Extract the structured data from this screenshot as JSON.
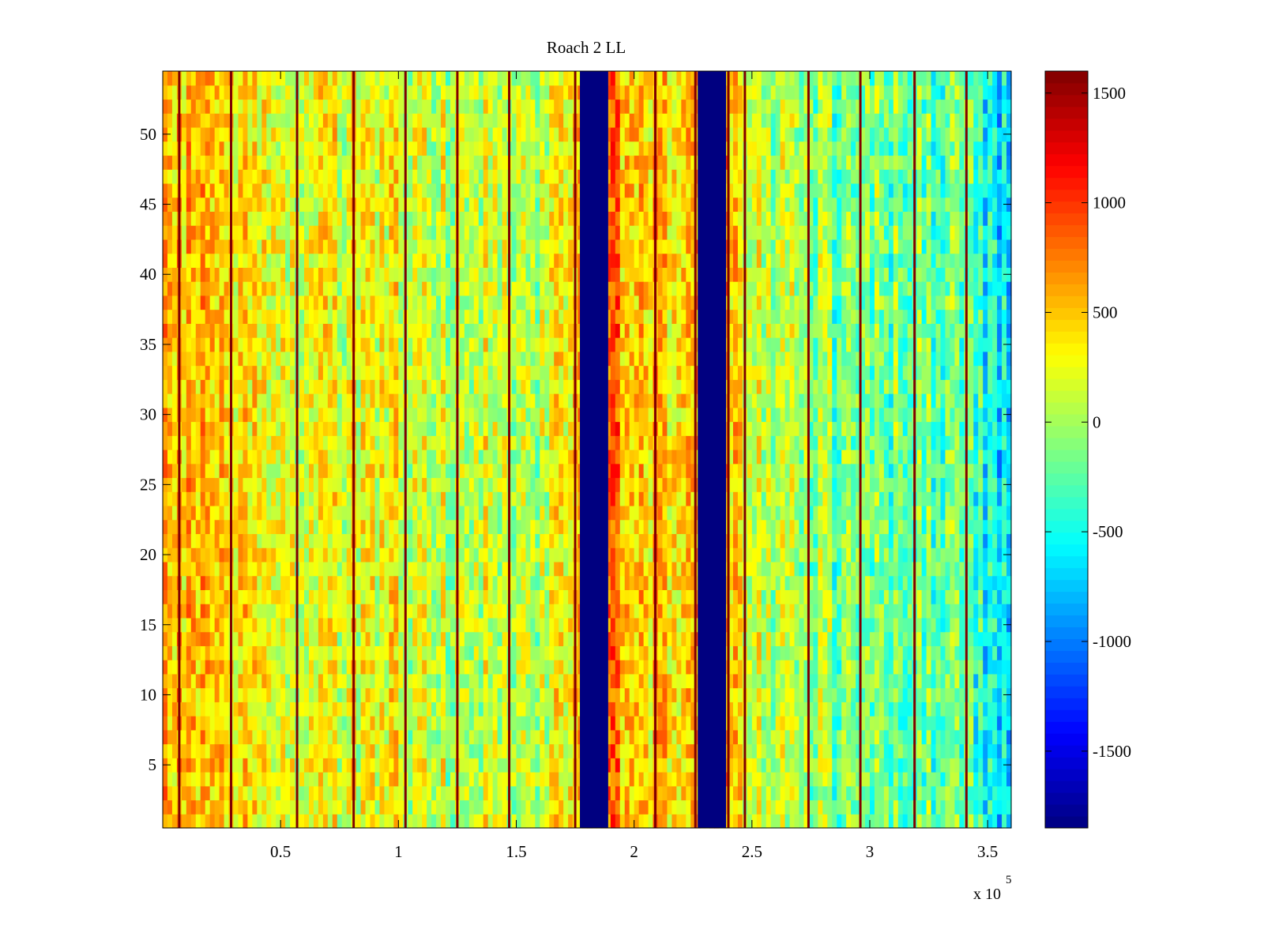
{
  "chart_data": {
    "type": "heatmap",
    "title": "Roach 2 LL",
    "xlabel": "",
    "ylabel": "",
    "x_multiplier_label": "x 10",
    "x_multiplier_exponent": "5",
    "xlim": [
      0,
      360000
    ],
    "ylim": [
      0.5,
      54.5
    ],
    "x_ticks": [
      0.5,
      1,
      1.5,
      2,
      2.5,
      3,
      3.5
    ],
    "x_tick_labels": [
      "0.5",
      "1",
      "1.5",
      "2",
      "2.5",
      "3",
      "3.5"
    ],
    "y_ticks": [
      5,
      10,
      15,
      20,
      25,
      30,
      35,
      40,
      45,
      50
    ],
    "y_tick_labels": [
      "5",
      "10",
      "15",
      "20",
      "25",
      "30",
      "35",
      "40",
      "45",
      "50"
    ],
    "colormap": "jet",
    "clim": [
      -1850,
      1600
    ],
    "colorbar_ticks": [
      1500,
      1000,
      500,
      0,
      -500,
      -1000,
      -1500
    ],
    "colorbar_tick_labels": [
      "1500",
      "1000",
      "500",
      "0",
      "-500",
      "-1000",
      "-1500"
    ],
    "column_profile": [
      {
        "x": 0,
        "value": 600
      },
      {
        "x": 10000,
        "value": 500
      },
      {
        "x": 25000,
        "value": 350
      },
      {
        "x": 40000,
        "value": 250
      },
      {
        "x": 60000,
        "value": 200
      },
      {
        "x": 80000,
        "value": 300
      },
      {
        "x": 95000,
        "value": 250
      },
      {
        "x": 115000,
        "value": 100
      },
      {
        "x": 130000,
        "value": 150
      },
      {
        "x": 150000,
        "value": 100
      },
      {
        "x": 168000,
        "value": 200
      },
      {
        "x": 176000,
        "value": 350
      },
      {
        "x": 190000,
        "value": 700
      },
      {
        "x": 200000,
        "value": 600
      },
      {
        "x": 212000,
        "value": 450
      },
      {
        "x": 225000,
        "value": 300
      },
      {
        "x": 238000,
        "value": 700
      },
      {
        "x": 245000,
        "value": 300
      },
      {
        "x": 260000,
        "value": 50
      },
      {
        "x": 280000,
        "value": -100
      },
      {
        "x": 300000,
        "value": -200
      },
      {
        "x": 320000,
        "value": -150
      },
      {
        "x": 340000,
        "value": -250
      },
      {
        "x": 350000,
        "value": -500
      },
      {
        "x": 360000,
        "value": -800
      }
    ],
    "blanked_bands": [
      {
        "x_start": 177000,
        "x_end": 189000,
        "value": -1850
      },
      {
        "x_start": 227000,
        "x_end": 239000,
        "value": -1850
      }
    ],
    "hot_lines": [
      7000,
      29000,
      57000,
      81000,
      103000,
      125000,
      147000,
      175000,
      209000,
      226000,
      240000,
      247000,
      274000,
      296000,
      319000,
      341000
    ],
    "hot_line_value": 1600
  }
}
